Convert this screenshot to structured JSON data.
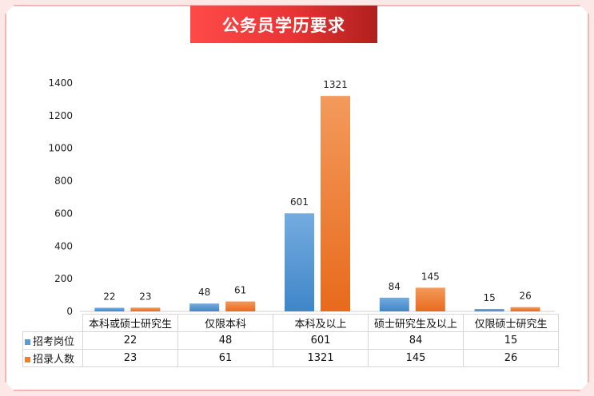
{
  "title": "公务员学历要求",
  "chart_data": {
    "type": "bar",
    "title": "公务员学历要求",
    "categories": [
      "本科或硕士研究生",
      "仅限本科",
      "本科及以上",
      "硕士研究生及以上",
      "仅限硕士研究生"
    ],
    "series": [
      {
        "name": "招考岗位",
        "values": [
          22,
          48,
          601,
          84,
          15
        ],
        "color": "#5b9bd5"
      },
      {
        "name": "招录人数",
        "values": [
          23,
          61,
          1321,
          145,
          26
        ],
        "color": "#ed7d31"
      }
    ],
    "ylim": [
      0,
      1400
    ],
    "yticks": [
      0,
      200,
      400,
      600,
      800,
      1000,
      1200,
      1400
    ],
    "grid": false,
    "legend": "data table"
  }
}
